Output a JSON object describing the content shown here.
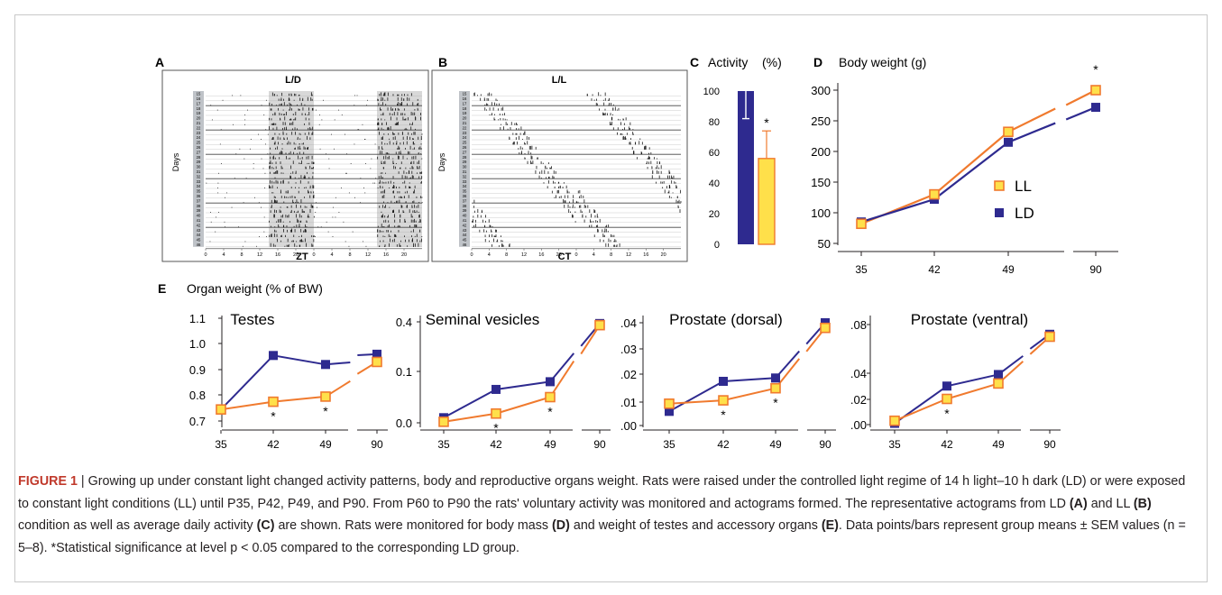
{
  "colors": {
    "ld": "#2e2a8f",
    "ll": "#f07a2e",
    "ll_fill": "#ffe04a",
    "actogram_bar": "#1a1a1a",
    "dark_band": "#d8d8d8"
  },
  "panels": {
    "A": {
      "letter": "A",
      "title": "L/D",
      "x_label": "ZT",
      "y_label": "Days"
    },
    "B": {
      "letter": "B",
      "title": "L/L",
      "x_label": "CT",
      "y_label": "Days"
    },
    "C": {
      "letter": "C",
      "title": "Activity",
      "unit": "(%)"
    },
    "D": {
      "letter": "D",
      "title": "Body weight (g)"
    },
    "E": {
      "letter": "E",
      "title": "Organ weight (% of BW)"
    }
  },
  "actogram": {
    "days": [
      "15",
      "16",
      "17",
      "18",
      "19",
      "20",
      "21",
      "22",
      "23",
      "24",
      "25",
      "26",
      "27",
      "28",
      "29",
      "30",
      "31",
      "32",
      "33",
      "34",
      "35",
      "36",
      "37",
      "38",
      "39",
      "40",
      "41",
      "42",
      "43",
      "44",
      "45",
      "46"
    ],
    "x_ticks": [
      "0",
      "4",
      "8",
      "12",
      "16",
      "20",
      "0",
      "4",
      "8",
      "12",
      "16",
      "20"
    ]
  },
  "chart_data": [
    {
      "panel": "C",
      "type": "bar",
      "categories": [
        "LD",
        "LL"
      ],
      "values": [
        100,
        56
      ],
      "errors": [
        18,
        18
      ],
      "significance": [
        "",
        "*"
      ],
      "yticks": [
        "0",
        "20",
        "40",
        "60",
        "80",
        "100"
      ],
      "ylim": [
        0,
        100
      ]
    },
    {
      "panel": "D",
      "type": "line",
      "x": [
        "35",
        "42",
        "49",
        "90"
      ],
      "series": [
        {
          "name": "LL",
          "values": [
            82,
            130,
            232,
            300
          ]
        },
        {
          "name": "LD",
          "values": [
            85,
            122,
            215,
            272
          ]
        }
      ],
      "significance": [
        "",
        "",
        "",
        "*"
      ],
      "yticks": [
        "50",
        "100",
        "150",
        "200",
        "250",
        "300"
      ],
      "ylim": [
        50,
        300
      ],
      "legend": "right"
    },
    {
      "panel": "E",
      "title": "Testes",
      "type": "line",
      "x": [
        "35",
        "42",
        "49",
        "90"
      ],
      "series": [
        {
          "name": "LL",
          "values": [
            0.745,
            0.775,
            0.795,
            0.93
          ]
        },
        {
          "name": "LD",
          "values": [
            0.745,
            0.955,
            0.92,
            0.96
          ]
        }
      ],
      "significance": [
        "",
        "*",
        "*",
        ""
      ],
      "yticks": [
        "0.7",
        "0.8",
        "0.9",
        "1.0",
        "1.1"
      ]
    },
    {
      "panel": "E",
      "title": "Seminal vesicles",
      "type": "line",
      "x": [
        "35",
        "42",
        "49",
        "90"
      ],
      "series": [
        {
          "name": "LL",
          "values": [
            0.002,
            0.018,
            0.05,
            0.38
          ]
        },
        {
          "name": "LD",
          "values": [
            0.01,
            0.065,
            0.08,
            0.39
          ]
        }
      ],
      "significance": [
        "",
        "*",
        "*",
        ""
      ],
      "yticks": [
        "0.0",
        "0.1",
        "0.4"
      ]
    },
    {
      "panel": "E",
      "title": "Prostate (dorsal)",
      "type": "line",
      "x": [
        "35",
        "42",
        "49",
        "90"
      ],
      "series": [
        {
          "name": "LL",
          "values": [
            0.0085,
            0.0098,
            0.0145,
            0.038
          ]
        },
        {
          "name": "LD",
          "values": [
            0.0055,
            0.0172,
            0.0185,
            0.04
          ]
        }
      ],
      "significance": [
        "",
        "*",
        "*",
        ""
      ],
      "yticks": [
        ".00",
        ".01",
        ".02",
        ".03",
        ".04"
      ]
    },
    {
      "panel": "E",
      "title": "Prostate (ventral)",
      "type": "line",
      "x": [
        "35",
        "42",
        "49",
        "90"
      ],
      "series": [
        {
          "name": "LL",
          "values": [
            0.003,
            0.02,
            0.032,
            0.07
          ]
        },
        {
          "name": "LD",
          "values": [
            0.001,
            0.03,
            0.039,
            0.072
          ]
        }
      ],
      "significance": [
        "",
        "*",
        "",
        ""
      ],
      "yticks": [
        ".00",
        ".02",
        ".04",
        ".08"
      ]
    }
  ],
  "caption": {
    "figure_label": "FIGURE 1",
    "separator": " | ",
    "s1": "Growing up under constant light changed activity patterns, body and reproductive organs weight. Rats were raised under the controlled light regime of 14 h light–10 h dark (LD) or were exposed to constant light conditions (LL) until P35, P42, P49, and P90. From P60 to P90 the rats' voluntary activity was monitored and actograms formed. The representative actograms from LD ",
    "refA": "(A)",
    "s2": " and LL ",
    "refB": "(B)",
    "s3": " condition as well as average daily activity ",
    "refC": "(C)",
    "s4": " are shown. Rats were monitored for body mass ",
    "refD": "(D)",
    "s5": " and weight of testes and accessory organs ",
    "refE": "(E)",
    "s6": ". Data points/bars represent group means ± SEM values (n = 5–8). *Statistical significance at level p < 0.05 compared to the corresponding LD group."
  }
}
